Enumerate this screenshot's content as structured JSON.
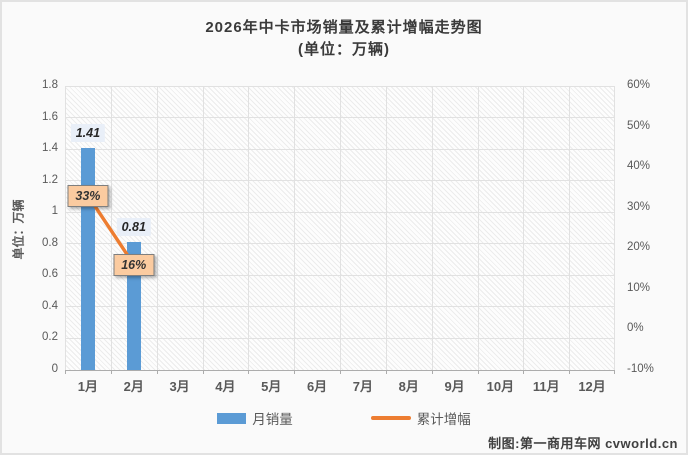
{
  "title": "2026年中卡市场销量及累计增幅走势图",
  "subtitle": "(单位：万辆)",
  "watermark": "制图:第一商用车网 cvworld.cn",
  "colors": {
    "bar": "#5B9BD5",
    "line": "#ED7D31",
    "value_label_bg": "#E9EFF8",
    "value_label_text": "#262626",
    "pct_label_bg": "#FBCBA0",
    "pct_label_border": "#7F7F7F",
    "pct_label_text": "#333333",
    "axis_text": "#595959",
    "grid": "#E1E1E1"
  },
  "chart_data": {
    "type": "bar",
    "title": "2026年中卡市场销量及累计增幅走势图",
    "subtitle": "(单位：万辆)",
    "categories": [
      "1月",
      "2月",
      "3月",
      "4月",
      "5月",
      "6月",
      "7月",
      "8月",
      "9月",
      "10月",
      "11月",
      "12月"
    ],
    "series": [
      {
        "name": "月销量",
        "type": "bar",
        "axis": "left",
        "values": [
          1.41,
          0.81,
          null,
          null,
          null,
          null,
          null,
          null,
          null,
          null,
          null,
          null
        ],
        "labels": [
          "1.41",
          "0.81"
        ]
      },
      {
        "name": "累计增幅",
        "type": "line",
        "axis": "right",
        "values": [
          33,
          16,
          null,
          null,
          null,
          null,
          null,
          null,
          null,
          null,
          null,
          null
        ],
        "labels": [
          "33%",
          "16%"
        ]
      }
    ],
    "left_axis": {
      "title": "单位：万辆",
      "min": 0,
      "max": 1.8,
      "step": 0.2,
      "ticks": [
        "0",
        "0.2",
        "0.4",
        "0.6",
        "0.8",
        "1",
        "1.2",
        "1.4",
        "1.6",
        "1.8"
      ]
    },
    "right_axis": {
      "min": -10,
      "max": 60,
      "step": 10,
      "ticks": [
        "60%",
        "50%",
        "40%",
        "30%",
        "20%",
        "10%",
        "0%",
        "-10%"
      ]
    },
    "legend": [
      "月销量",
      "累计增幅"
    ],
    "legend_position": "bottom",
    "grid": true
  }
}
